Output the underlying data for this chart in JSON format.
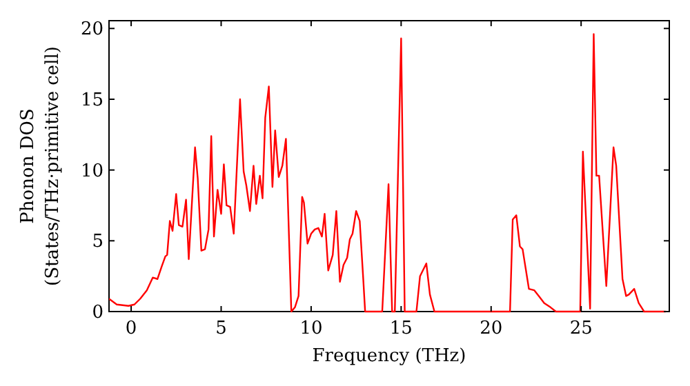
{
  "chart_data": {
    "type": "line",
    "xlabel": "Frequency (THz)",
    "ylabel": "Phonon DOS\n(States/THz·primitive cell)",
    "xlim": [
      -1.23,
      29.9
    ],
    "ylim": [
      0,
      20.55
    ],
    "xticks": [
      0,
      5,
      10,
      15,
      20,
      25
    ],
    "yticks": [
      0,
      5,
      10,
      15,
      20
    ],
    "grid": false,
    "series": [
      {
        "color": "#ff0000",
        "x": [
          -1.23,
          -0.8,
          -0.15,
          0.18,
          0.5,
          0.87,
          1.2,
          1.46,
          1.7,
          1.9,
          2.0,
          2.15,
          2.3,
          2.5,
          2.65,
          2.85,
          3.05,
          3.2,
          3.55,
          3.7,
          3.9,
          4.1,
          4.3,
          4.45,
          4.6,
          4.8,
          5.0,
          5.15,
          5.3,
          5.5,
          5.7,
          6.05,
          6.25,
          6.4,
          6.6,
          6.8,
          6.95,
          7.15,
          7.3,
          7.45,
          7.65,
          7.85,
          8.0,
          8.2,
          8.4,
          8.6,
          8.9,
          9.1,
          9.3,
          9.5,
          9.6,
          9.8,
          10.0,
          10.2,
          10.4,
          10.6,
          10.75,
          10.95,
          11.2,
          11.4,
          11.6,
          11.8,
          12.0,
          12.15,
          12.3,
          12.5,
          12.7,
          12.9,
          13.0,
          13.95,
          14.3,
          14.5,
          14.65,
          15.0,
          15.2,
          15.85,
          16.05,
          16.4,
          16.6,
          16.85,
          21.05,
          21.2,
          21.4,
          21.6,
          21.75,
          22.1,
          22.4,
          22.65,
          22.95,
          23.3,
          23.6,
          24.95,
          25.1,
          25.5,
          25.7,
          25.85,
          26.0,
          26.4,
          26.8,
          26.95,
          27.3,
          27.5,
          27.65,
          27.95,
          28.2,
          28.5,
          29.7
        ],
        "values": [
          0.9,
          0.5,
          0.4,
          0.5,
          0.9,
          1.5,
          2.4,
          2.3,
          3.2,
          3.9,
          4.0,
          6.4,
          5.7,
          8.3,
          6.1,
          6.0,
          7.9,
          3.7,
          11.6,
          9.4,
          4.3,
          4.4,
          5.8,
          12.4,
          5.3,
          8.6,
          6.9,
          10.4,
          7.5,
          7.4,
          5.5,
          15.0,
          9.9,
          8.9,
          7.1,
          10.3,
          7.6,
          9.6,
          8.0,
          13.7,
          15.9,
          8.8,
          12.8,
          9.5,
          10.3,
          12.2,
          0,
          0.3,
          1.1,
          8.1,
          7.7,
          4.8,
          5.5,
          5.8,
          5.9,
          5.3,
          6.9,
          2.9,
          4.0,
          7.1,
          2.1,
          3.3,
          3.8,
          5.1,
          5.5,
          7.1,
          6.4,
          2.2,
          0,
          0,
          9.0,
          0,
          0,
          19.3,
          0,
          0,
          2.5,
          3.4,
          1.2,
          0,
          0,
          6.5,
          6.8,
          4.6,
          4.4,
          1.6,
          1.5,
          1.1,
          0.6,
          0.3,
          0,
          0,
          11.3,
          0.2,
          19.6,
          9.6,
          9.6,
          1.8,
          11.6,
          10.3,
          2.3,
          1.1,
          1.2,
          1.6,
          0.6,
          0,
          0
        ]
      }
    ]
  }
}
